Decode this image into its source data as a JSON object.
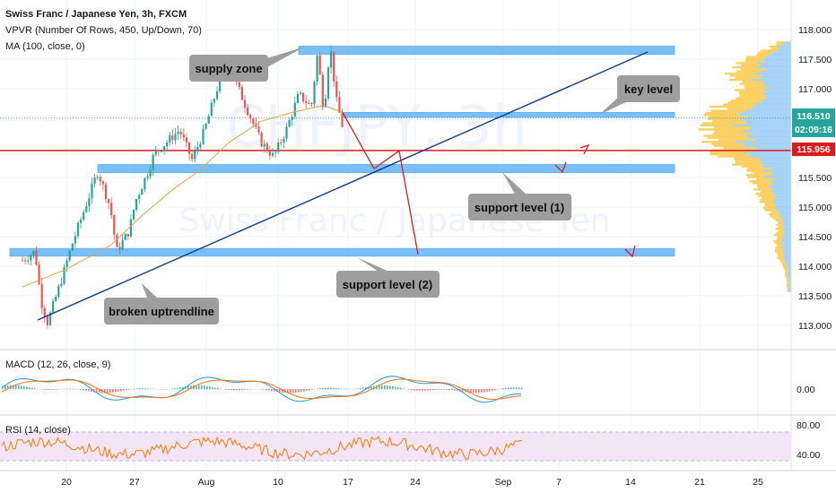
{
  "header": {
    "title": "Swiss Franc / Japanese Yen, 3h, FXCM",
    "indicator_vpvr": "VPVR (Number Of Rows, 450, Up/Down, 70)",
    "indicator_ma": "MA (100, close, 0)"
  },
  "watermark": {
    "symbol": "CHFJPY, 3h",
    "name": "Swiss Franc / Japanese Yen"
  },
  "colors": {
    "up": "#26a69a",
    "down": "#ef5350",
    "ma": "#e3a53a",
    "zone": "#64b5f6",
    "trendline": "#0d3b91",
    "red_line": "#e01919",
    "macd": "#2196f3",
    "signal": "#ff6d00",
    "rsi": "#f57c00",
    "rsi_band": "#f3e5f5",
    "vpvr_up": "#90c8f5",
    "vpvr_down": "#fbc02d"
  },
  "annotations": {
    "supply_zone": "supply zone",
    "key_level": "key level",
    "support_level_1": "support level (1)",
    "support_level_2": "support level (2)",
    "broken_uptrendline": "broken uptrendline"
  },
  "price_tags": {
    "last_price": "116.510",
    "countdown": "02:09:16",
    "horizontal_line": "115.956"
  },
  "panes": {
    "macd_label": "MACD (12, 26, close, 9)",
    "macd_tick": "0.00",
    "rsi_label": "RSI (14, close)",
    "rsi_ticks": [
      "80.00",
      "40.00"
    ]
  },
  "chart_data": {
    "type": "candlestick",
    "title": "Swiss Franc / Japanese Yen, 3h, FXCM",
    "x_ticks": [
      "20",
      "27",
      "Aug",
      "10",
      "17",
      "24",
      "Sep",
      "7",
      "14",
      "21",
      "25"
    ],
    "y_ticks": [
      "118.000",
      "117.500",
      "117.000",
      "116.500",
      "116.000",
      "115.500",
      "115.000",
      "114.500",
      "114.000",
      "113.500",
      "113.000"
    ],
    "ylim": [
      112.9,
      118.1
    ],
    "price_path": [
      {
        "x": "Jul 13",
        "y": 114.1
      },
      {
        "x": "Jul 15",
        "y": 114.25
      },
      {
        "x": "Jul 16",
        "y": 113.4
      },
      {
        "x": "Jul 17",
        "y": 113.05
      },
      {
        "x": "Jul 19",
        "y": 113.7
      },
      {
        "x": "Jul 21",
        "y": 114.4
      },
      {
        "x": "Jul 23",
        "y": 115.0
      },
      {
        "x": "Jul 25",
        "y": 115.6
      },
      {
        "x": "Jul 27",
        "y": 115.0
      },
      {
        "x": "Jul 28",
        "y": 114.25
      },
      {
        "x": "Jul 30",
        "y": 114.6
      },
      {
        "x": "Jul 31",
        "y": 115.1
      },
      {
        "x": "Aug 2",
        "y": 115.6
      },
      {
        "x": "Aug 3",
        "y": 115.9
      },
      {
        "x": "Aug 5",
        "y": 116.1
      },
      {
        "x": "Aug 7",
        "y": 116.3
      },
      {
        "x": "Aug 9",
        "y": 115.8
      },
      {
        "x": "Aug 11",
        "y": 116.3
      },
      {
        "x": "Aug 13",
        "y": 117.0
      },
      {
        "x": "Aug 15",
        "y": 117.55
      },
      {
        "x": "Aug 16",
        "y": 117.1
      },
      {
        "x": "Aug 18",
        "y": 116.6
      },
      {
        "x": "Aug 20",
        "y": 116.1
      },
      {
        "x": "Aug 22",
        "y": 115.85
      },
      {
        "x": "Aug 24",
        "y": 116.3
      },
      {
        "x": "Aug 26",
        "y": 116.9
      },
      {
        "x": "Aug 28",
        "y": 116.7
      },
      {
        "x": "Aug 29",
        "y": 117.6
      },
      {
        "x": "Aug 30",
        "y": 116.6
      },
      {
        "x": "Aug 31",
        "y": 117.75
      },
      {
        "x": "Sep 1",
        "y": 116.8
      },
      {
        "x": "Sep 2",
        "y": 116.35
      }
    ],
    "ma100_path": [
      {
        "x": "Jul 13",
        "y": 113.65
      },
      {
        "x": "Jul 20",
        "y": 113.95
      },
      {
        "x": "Jul 27",
        "y": 114.35
      },
      {
        "x": "Aug 1",
        "y": 114.85
      },
      {
        "x": "Aug 6",
        "y": 115.3
      },
      {
        "x": "Aug 10",
        "y": 115.6
      },
      {
        "x": "Aug 15",
        "y": 116.1
      },
      {
        "x": "Aug 20",
        "y": 116.45
      },
      {
        "x": "Aug 25",
        "y": 116.6
      },
      {
        "x": "Aug 30",
        "y": 116.72
      },
      {
        "x": "Sep 2",
        "y": 116.6
      }
    ],
    "zones": [
      {
        "name": "supply zone",
        "from": 117.58,
        "to": 117.72
      },
      {
        "name": "key level",
        "from": 116.52,
        "to": 116.6
      },
      {
        "name": "support level (1)",
        "from": 115.58,
        "to": 115.72
      },
      {
        "name": "support level (2)",
        "from": 114.17,
        "to": 114.3
      }
    ],
    "horizontal_line": 115.956,
    "last_price": 116.51,
    "projection": [
      {
        "x": "Sep 2",
        "y": 116.6
      },
      {
        "x": "Sep 7",
        "y": 115.65
      },
      {
        "x": "Sep 11",
        "y": 115.95
      },
      {
        "x": "Sep 14",
        "y": 114.2
      }
    ],
    "rsi_range": [
      40,
      80
    ]
  }
}
